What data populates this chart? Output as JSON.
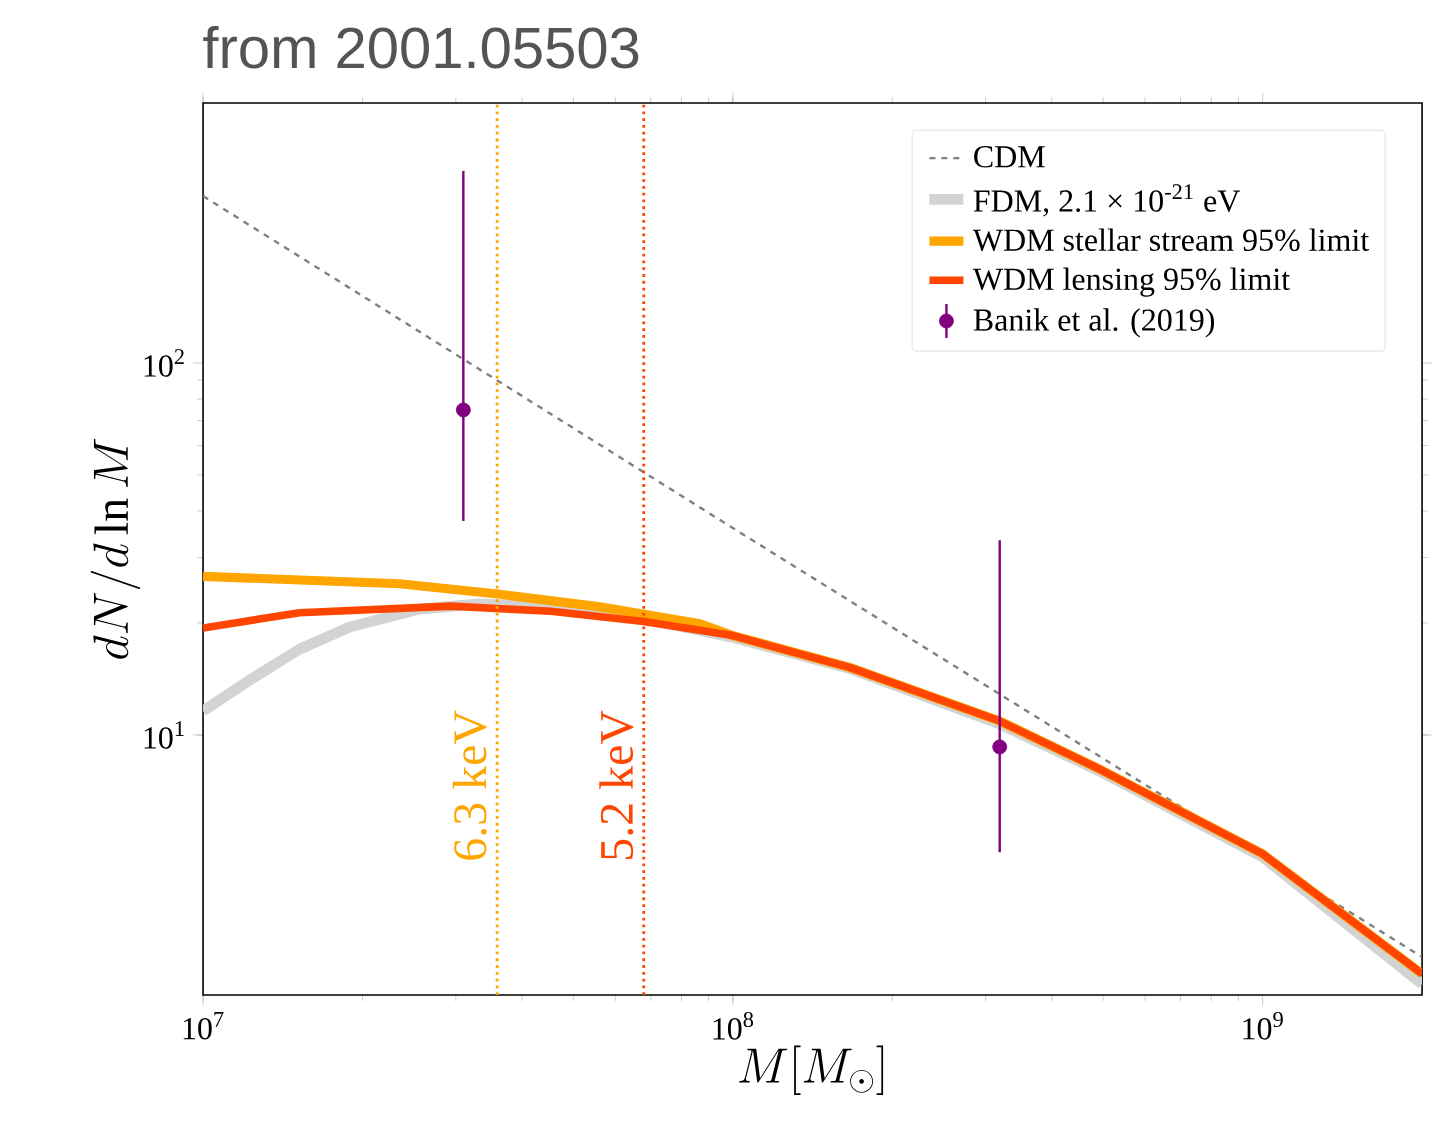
{
  "chart_data": {
    "type": "line",
    "title": "from 2001.05503",
    "xlabel": "M[M_\\odot]",
    "ylabel": "dN/d\\ln M",
    "log": "xy",
    "legend": "top right",
    "xlim": [
      10000000,
      2000000000
    ],
    "ylim": [
      2.0,
      500
    ],
    "xticks": [
      {
        "value": 10000000,
        "label": "10$^{7}$"
      },
      {
        "value": 100000000,
        "label": "10$^{8}$"
      },
      {
        "value": 1000000000,
        "label": "10$^{9}$"
      }
    ],
    "yticks": [
      {
        "value": 10,
        "label": "10$^{1}$"
      },
      {
        "value": 100,
        "label": "10$^{2}$"
      }
    ],
    "series": [
      {
        "name": "CDM",
        "color": "#808080",
        "line_style": "dashed",
        "x": [
          10000000,
          100000000,
          2000000000
        ],
        "values": [
          281,
          36,
          2.53
        ]
      },
      {
        "name": "FDM, 2.1 × 10$^{-21}$ eV",
        "color": "#d3d3d3",
        "x": [
          10000000,
          12300000,
          15200000,
          18900000,
          25600000,
          33300000,
          56100000,
          100000000,
          166000000,
          319000000,
          492000000,
          1000000000,
          2000000000
        ],
        "values": [
          11.6,
          14.1,
          17.0,
          19.5,
          21.8,
          22.5,
          21.8,
          18.3,
          15.1,
          10.7,
          8.0,
          4.7,
          2.14
        ]
      },
      {
        "name": "WDM stellar stream 95% limit",
        "color": "#ffa500",
        "x": [
          10000000,
          23500000,
          36300000,
          56100000,
          86700000,
          100000000,
          166000000,
          319000000,
          492000000,
          1000000000,
          2000000000
        ],
        "values": [
          26.7,
          25.5,
          23.9,
          22.1,
          19.9,
          18.5,
          15.2,
          10.9,
          8.1,
          4.79,
          2.28
        ]
      },
      {
        "name": "WDM lensing 95% limit",
        "color": "#ff4500",
        "x": [
          10000000,
          15200000,
          29400000,
          45400000,
          67900000,
          100000000,
          166000000,
          319000000,
          492000000,
          1000000000,
          2000000000
        ],
        "values": [
          19.4,
          21.3,
          22.2,
          21.5,
          20.2,
          18.5,
          15.2,
          10.9,
          8.1,
          4.79,
          2.28
        ]
      },
      {
        "name": "Banik et al. (2019)",
        "type": "scatter",
        "marker": "circle",
        "color": "#800080",
        "x": [
          31000000,
          319000000
        ],
        "values": [
          74.8,
          9.29
        ],
        "errors": [
          [
            37.6,
            328
          ],
          [
            4.84,
            33.4
          ]
        ]
      }
    ],
    "ref_lines": [
      {
        "axis": "x",
        "value": 35900000,
        "label": "6.3 keV",
        "color": "#ffa500",
        "line_style": "dotted"
      },
      {
        "axis": "x",
        "value": 67900000,
        "label": "5.2 keV",
        "color": "#ff4500",
        "line_style": "dotted"
      }
    ]
  }
}
